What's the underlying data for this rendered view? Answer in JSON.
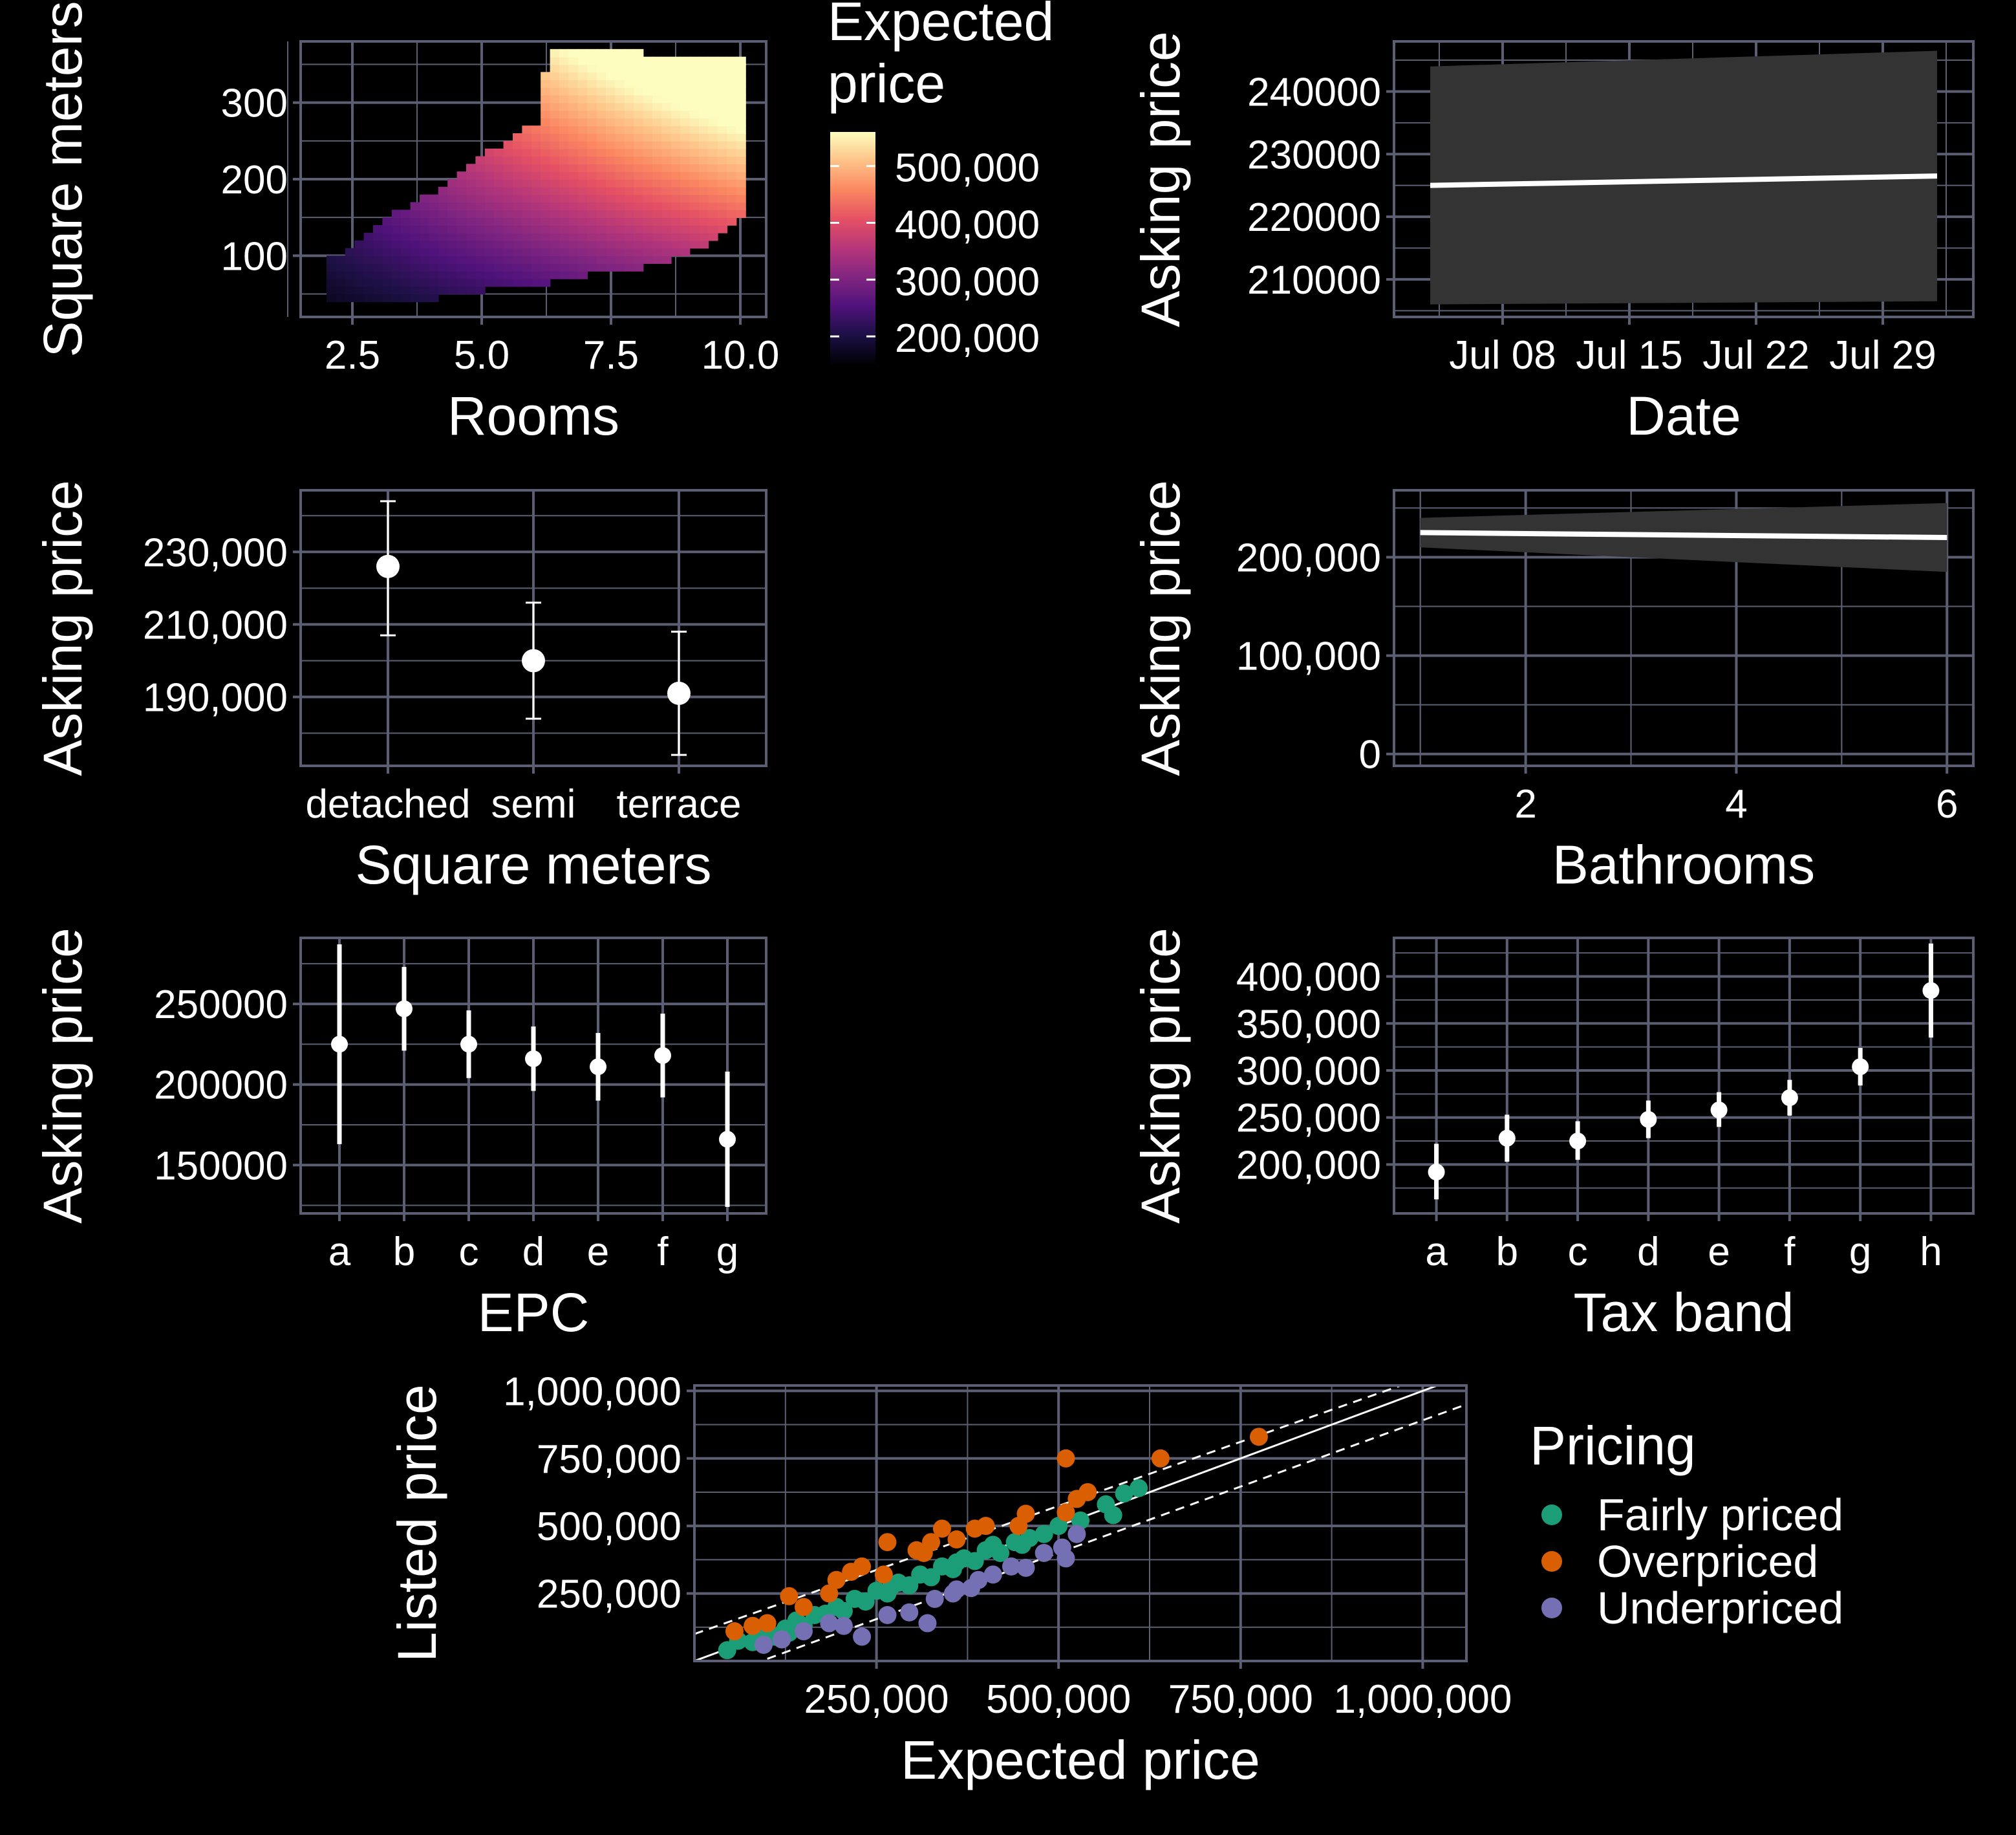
{
  "colors": {
    "background": "#000000",
    "grid": "#5c5f73",
    "mark": "#ffffff",
    "ribbon": "#333333",
    "fairly_priced": "#1b9e77",
    "overpriced": "#d95f02",
    "underpriced": "#7570b3",
    "magma": [
      "#000004",
      "#1c1044",
      "#4f127b",
      "#812581",
      "#b5367a",
      "#e55064",
      "#fb8761",
      "#fec287",
      "#fcfdbf"
    ]
  },
  "chart_data": [
    {
      "id": "rooms-heatmap",
      "type": "heatmap",
      "xlabel": "Rooms",
      "ylabel": "Square meters",
      "xticks": [
        "2.5",
        "5.0",
        "7.5",
        "10.0"
      ],
      "xtick_values": [
        2.5,
        5.0,
        7.5,
        10.0
      ],
      "yticks": [
        "100",
        "200",
        "300"
      ],
      "ytick_values": [
        100,
        200,
        300
      ],
      "xlim": [
        1.5,
        10.5
      ],
      "ylim": [
        20,
        380
      ],
      "x_step": 0.18,
      "y_step": 10,
      "region": [
        [
          2.0,
          40,
          90
        ],
        [
          3.0,
          40,
          140
        ],
        [
          4.0,
          40,
          180
        ],
        [
          5.0,
          50,
          230
        ],
        [
          6.0,
          60,
          270
        ],
        [
          6.2,
          60,
          360
        ],
        [
          7.0,
          70,
          360
        ],
        [
          8.0,
          80,
          360
        ],
        [
          9.0,
          100,
          350
        ],
        [
          10.0,
          150,
          360
        ]
      ],
      "fill_model": {
        "a": 130000,
        "b": 380,
        "c": 12000
      },
      "legend_title_lines": [
        "Expected",
        "price"
      ],
      "legend_labels": [
        "500,000",
        "400,000",
        "300,000",
        "200,000"
      ],
      "legend_values": [
        500000,
        400000,
        300000,
        200000
      ],
      "legend_range": [
        150000,
        560000
      ]
    },
    {
      "id": "date-line",
      "type": "line",
      "xlabel": "Date",
      "ylabel": "Asking price",
      "x": [
        "2024-07-04",
        "2024-08-01"
      ],
      "y": [
        225000,
        226500
      ],
      "lower": [
        206000,
        206500
      ],
      "upper": [
        244000,
        246500
      ],
      "xticks": [
        "Jul 08",
        "Jul 15",
        "Jul 22",
        "Jul 29"
      ],
      "xtick_values": [
        "2024-07-08",
        "2024-07-15",
        "2024-07-22",
        "2024-07-29"
      ],
      "xlim": [
        "2024-07-02",
        "2024-08-03"
      ],
      "yticks": [
        "210000",
        "220000",
        "230000",
        "240000"
      ],
      "ytick_values": [
        210000,
        220000,
        230000,
        240000
      ],
      "ylim": [
        204000,
        248000
      ]
    },
    {
      "id": "type-points",
      "type": "scatter",
      "xlabel": "Square meters",
      "ylabel": "Asking price",
      "categories": [
        "detached",
        "semi",
        "terrace"
      ],
      "values": [
        226000,
        200000,
        191000
      ],
      "lower": [
        207000,
        184000,
        174000
      ],
      "upper": [
        244000,
        216000,
        208000
      ],
      "yticks": [
        "190,000",
        "210,000",
        "230,000"
      ],
      "ytick_values": [
        190000,
        210000,
        230000
      ],
      "ylim": [
        171000,
        247000
      ]
    },
    {
      "id": "bathrooms-line",
      "type": "line",
      "xlabel": "Bathrooms",
      "ylabel": "Asking price",
      "x": [
        1,
        6
      ],
      "y": [
        225000,
        220000
      ],
      "lower": [
        210000,
        185000
      ],
      "upper": [
        240000,
        255000
      ],
      "xticks": [
        "2",
        "4",
        "6"
      ],
      "xtick_values": [
        2,
        4,
        6
      ],
      "xlim": [
        0.75,
        6.25
      ],
      "yticks": [
        "0",
        "100,000",
        "200,000"
      ],
      "ytick_values": [
        0,
        100000,
        200000
      ],
      "ylim": [
        -12000,
        268000
      ]
    },
    {
      "id": "epc-points",
      "type": "scatter",
      "xlabel": "EPC",
      "ylabel": "Asking price",
      "categories": [
        "a",
        "b",
        "c",
        "d",
        "e",
        "f",
        "g"
      ],
      "values": [
        225000,
        247000,
        225000,
        216000,
        211000,
        218000,
        166000
      ],
      "lower": [
        163000,
        221000,
        204000,
        196000,
        190000,
        192000,
        124000
      ],
      "upper": [
        287000,
        273000,
        246000,
        236000,
        232000,
        244000,
        208000
      ],
      "yticks": [
        "150000",
        "200000",
        "250000"
      ],
      "ytick_values": [
        150000,
        200000,
        250000
      ],
      "ylim": [
        120000,
        291000
      ]
    },
    {
      "id": "tax-band-points",
      "type": "scatter",
      "xlabel": "Tax band",
      "ylabel": "Asking price",
      "categories": [
        "a",
        "b",
        "c",
        "d",
        "e",
        "f",
        "g",
        "h"
      ],
      "values": [
        192000,
        228000,
        225000,
        248000,
        258000,
        271000,
        304000,
        385000
      ],
      "lower": [
        163000,
        203000,
        205000,
        228000,
        240000,
        252000,
        284000,
        335000
      ],
      "upper": [
        222000,
        253000,
        246000,
        268000,
        277000,
        290000,
        324000,
        435000
      ],
      "yticks": [
        "200,000",
        "250,000",
        "300,000",
        "350,000",
        "400,000"
      ],
      "ytick_values": [
        200000,
        250000,
        300000,
        350000,
        400000
      ],
      "ylim": [
        148000,
        441000
      ]
    },
    {
      "id": "pricing-scatter",
      "type": "scatter",
      "xlabel": "Expected price",
      "ylabel": "Listed price",
      "xticks": [
        "250,000",
        "500,000",
        "750,000",
        "1,000,000"
      ],
      "xtick_values": [
        250000,
        500000,
        750000,
        1000000
      ],
      "yticks": [
        "250,000",
        "500,000",
        "750,000",
        "1,000,000"
      ],
      "ytick_values": [
        250000,
        500000,
        750000,
        1000000
      ],
      "xlim": [
        0,
        1060000
      ],
      "ylim": [
        0,
        1020000
      ],
      "identity_line": [
        [
          0,
          0
        ],
        [
          1060000,
          1060000
        ]
      ],
      "band_lines": [
        [
          [
            0,
            100000
          ],
          [
            970000,
            1020000
          ]
        ],
        [
          [
            0,
            -90000
          ],
          [
            1060000,
            950000
          ]
        ]
      ],
      "legend_title": "Pricing",
      "series": [
        {
          "name": "Fairly priced",
          "points": [
            [
              45000,
              40000
            ],
            [
              60000,
              75000
            ],
            [
              80000,
              70000
            ],
            [
              95000,
              95000
            ],
            [
              110000,
              90000
            ],
            [
              125000,
              120000
            ],
            [
              140000,
              150000
            ],
            [
              150000,
              130000
            ],
            [
              165000,
              170000
            ],
            [
              180000,
              175000
            ],
            [
              195000,
              200000
            ],
            [
              205000,
              185000
            ],
            [
              220000,
              230000
            ],
            [
              235000,
              220000
            ],
            [
              250000,
              260000
            ],
            [
              265000,
              250000
            ],
            [
              280000,
              290000
            ],
            [
              295000,
              280000
            ],
            [
              310000,
              320000
            ],
            [
              325000,
              310000
            ],
            [
              340000,
              350000
            ],
            [
              355000,
              340000
            ],
            [
              370000,
              380000
            ],
            [
              385000,
              370000
            ],
            [
              400000,
              410000
            ],
            [
              420000,
              400000
            ],
            [
              440000,
              440000
            ],
            [
              460000,
              455000
            ],
            [
              480000,
              470000
            ],
            [
              500000,
              500000
            ],
            [
              530000,
              520000
            ],
            [
              565000,
              580000
            ],
            [
              575000,
              540000
            ],
            [
              590000,
              620000
            ],
            [
              610000,
              640000
            ],
            [
              130000,
              105000
            ],
            [
              270000,
              275000
            ],
            [
              360000,
              365000
            ],
            [
              410000,
              430000
            ],
            [
              450000,
              430000
            ]
          ]
        },
        {
          "name": "Overpriced",
          "points": [
            [
              55000,
              110000
            ],
            [
              80000,
              130000
            ],
            [
              100000,
              140000
            ],
            [
              130000,
              240000
            ],
            [
              150000,
              200000
            ],
            [
              185000,
              250000
            ],
            [
              195000,
              300000
            ],
            [
              215000,
              330000
            ],
            [
              230000,
              350000
            ],
            [
              260000,
              320000
            ],
            [
              265000,
              440000
            ],
            [
              305000,
              410000
            ],
            [
              315000,
              400000
            ],
            [
              325000,
              440000
            ],
            [
              340000,
              490000
            ],
            [
              360000,
              450000
            ],
            [
              385000,
              490000
            ],
            [
              400000,
              500000
            ],
            [
              445000,
              500000
            ],
            [
              455000,
              545000
            ],
            [
              510000,
              550000
            ],
            [
              510000,
              750000
            ],
            [
              525000,
              600000
            ],
            [
              540000,
              625000
            ],
            [
              640000,
              750000
            ],
            [
              775000,
              830000
            ]
          ]
        },
        {
          "name": "Underpriced",
          "points": [
            [
              95000,
              60000
            ],
            [
              120000,
              80000
            ],
            [
              150000,
              110000
            ],
            [
              185000,
              140000
            ],
            [
              205000,
              130000
            ],
            [
              230000,
              90000
            ],
            [
              265000,
              170000
            ],
            [
              295000,
              180000
            ],
            [
              320000,
              140000
            ],
            [
              330000,
              230000
            ],
            [
              355000,
              250000
            ],
            [
              360000,
              265000
            ],
            [
              380000,
              270000
            ],
            [
              390000,
              300000
            ],
            [
              410000,
              320000
            ],
            [
              435000,
              350000
            ],
            [
              455000,
              345000
            ],
            [
              480000,
              400000
            ],
            [
              505000,
              420000
            ],
            [
              510000,
              380000
            ],
            [
              525000,
              470000
            ]
          ]
        }
      ]
    }
  ]
}
